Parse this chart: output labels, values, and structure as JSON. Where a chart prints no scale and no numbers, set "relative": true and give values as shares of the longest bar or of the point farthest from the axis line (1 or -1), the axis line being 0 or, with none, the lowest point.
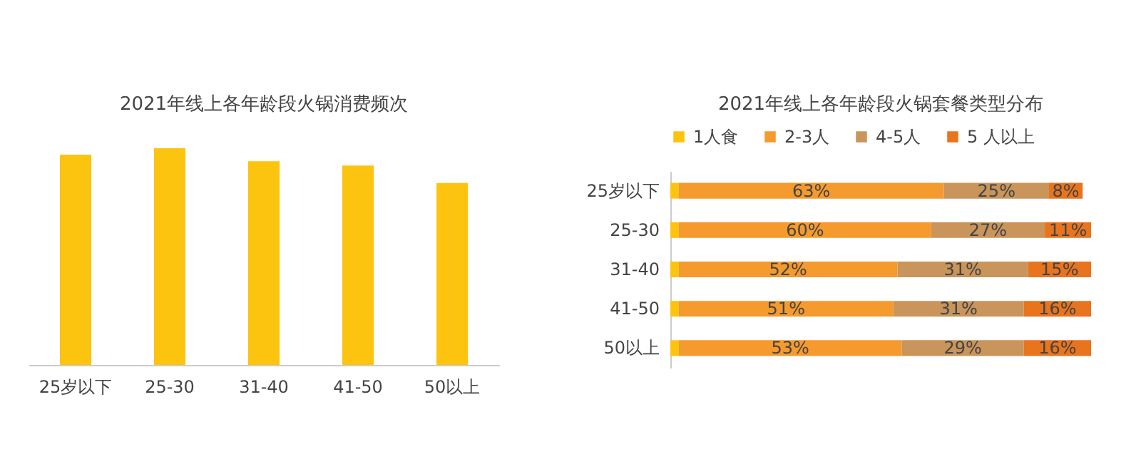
{
  "chart_data": [
    {
      "type": "bar",
      "title": "2021年线上各年龄段火锅消费频次",
      "categories": [
        "25岁以下",
        "25-30",
        "31-40",
        "41-50",
        "50以上"
      ],
      "values": [
        0.97,
        1,
        0.94,
        0.92,
        0.84
      ],
      "color": "#fcc30f",
      "relative": true
    },
    {
      "type": "bar",
      "orientation": "horizontal",
      "stacked": true,
      "title": "2021年线上各年龄段火锅套餐类型分布",
      "legend": "top",
      "categories": [
        "25岁以下",
        "25-30",
        "31-40",
        "41-50",
        "50以上"
      ],
      "xlim": [
        0,
        100
      ],
      "series": [
        {
          "name": "1人食",
          "color": "#fcc30f",
          "values": [
            2,
            2,
            2,
            2,
            2
          ],
          "value_labels": [
            null,
            null,
            null,
            null,
            null
          ]
        },
        {
          "name": "2-3人",
          "color": "#f59a2c",
          "values": [
            63,
            60,
            52,
            51,
            53
          ],
          "value_labels": [
            "63%",
            "60%",
            "52%",
            "51%",
            "53%"
          ]
        },
        {
          "name": "4-5人",
          "color": "#c9955b",
          "values": [
            25,
            27,
            31,
            31,
            29
          ],
          "value_labels": [
            "25%",
            "27%",
            "31%",
            "31%",
            "29%"
          ]
        },
        {
          "name": "5 人以上",
          "color": "#e8741e",
          "values": [
            8,
            11,
            15,
            16,
            16
          ],
          "value_labels": [
            "8%",
            "11%",
            "15%",
            "16%",
            "16%"
          ]
        }
      ]
    }
  ]
}
